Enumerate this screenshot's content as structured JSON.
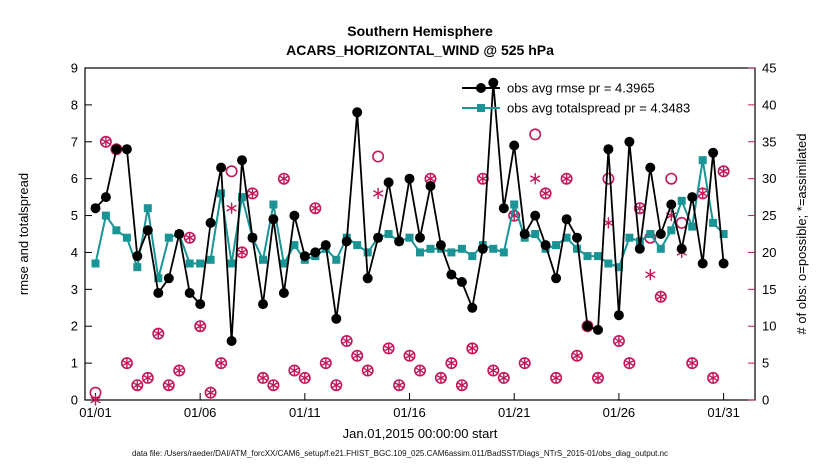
{
  "title": {
    "line1": "Southern Hemisphere",
    "line2": "ACARS_HORIZONTAL_WIND @ 525 hPa"
  },
  "footer": {
    "datafile": "data file: /Users/raeder/DAI/ATM_forcXX/CAM6_setup/f.e21.FHIST_BGC.109_025.CAM6assim.011/BadSST/Diags_NTrS_2015-01/obs_diag_output.nc"
  },
  "colors": {
    "rmse": "#000000",
    "totalspread": "#1a9494",
    "obs": "#c2185b",
    "axis": "#000000"
  },
  "chart_data": {
    "type": "line",
    "title": "Southern Hemisphere - ACARS_HORIZONTAL_WIND @ 525 hPa",
    "xlabel": "Jan.01,2015 00:00:00 start",
    "ylabel_left": "rmse and totalspread",
    "ylabel_right": "# of obs: o=possible; *=assimilated",
    "xlim": [
      0.5,
      32.5
    ],
    "ylim_left": [
      0,
      9
    ],
    "ylim_right": [
      0,
      45
    ],
    "yticks_left": [
      0,
      1,
      2,
      3,
      4,
      5,
      6,
      7,
      8,
      9
    ],
    "yticks_right": [
      0,
      5,
      10,
      15,
      20,
      25,
      30,
      35,
      40,
      45
    ],
    "xticks": [
      {
        "day": 1,
        "label": "01/01"
      },
      {
        "day": 6,
        "label": "01/06"
      },
      {
        "day": 11,
        "label": "01/11"
      },
      {
        "day": 16,
        "label": "01/16"
      },
      {
        "day": 21,
        "label": "01/21"
      },
      {
        "day": 26,
        "label": "01/26"
      },
      {
        "day": 31,
        "label": "01/31"
      }
    ],
    "x_start": 1,
    "x_step": 0.5,
    "legend": [
      {
        "label": "obs avg rmse pr = 4.3965",
        "series": "rmse"
      },
      {
        "label": "obs avg totalspread pr = 4.3483",
        "series": "totalspread"
      }
    ],
    "series": [
      {
        "name": "rmse",
        "axis": "left",
        "marker": "filled-circle",
        "values": [
          5.2,
          5.5,
          6.8,
          6.8,
          3.9,
          4.6,
          2.9,
          3.3,
          4.5,
          2.9,
          2.6,
          4.8,
          6.3,
          1.6,
          6.5,
          4.4,
          2.6,
          4.9,
          2.9,
          5.0,
          3.9,
          4.0,
          4.2,
          2.2,
          4.3,
          7.8,
          3.3,
          4.4,
          5.9,
          4.3,
          6.0,
          4.4,
          5.8,
          4.2,
          3.4,
          3.2,
          2.5,
          4.1,
          8.6,
          5.2,
          6.9,
          4.5,
          5.0,
          4.2,
          3.3,
          4.9,
          4.4,
          2.0,
          1.9,
          6.8,
          2.3,
          7.0,
          4.1,
          6.3,
          4.5,
          5.3,
          4.1,
          5.5,
          3.7,
          6.7,
          3.7
        ]
      },
      {
        "name": "totalspread",
        "axis": "left",
        "marker": "filled-square",
        "values": [
          3.7,
          5.0,
          4.6,
          4.4,
          3.6,
          5.2,
          3.3,
          4.4,
          4.5,
          3.7,
          3.7,
          3.8,
          5.6,
          3.7,
          5.5,
          4.4,
          3.8,
          5.3,
          3.7,
          4.2,
          3.8,
          3.9,
          4.1,
          3.8,
          4.4,
          4.2,
          4.0,
          4.4,
          4.5,
          4.3,
          4.4,
          4.0,
          4.1,
          4.1,
          4.0,
          4.1,
          3.9,
          4.2,
          4.1,
          4.0,
          5.3,
          4.4,
          4.5,
          4.1,
          4.2,
          4.4,
          4.1,
          3.9,
          3.9,
          3.7,
          3.6,
          4.4,
          4.3,
          4.5,
          4.1,
          4.6,
          5.4,
          4.7,
          6.5,
          4.8,
          4.5
        ]
      },
      {
        "name": "possible",
        "axis": "right",
        "marker": "open-circle",
        "values": [
          1,
          35,
          34,
          5,
          2,
          3,
          9,
          2,
          4,
          22,
          10,
          1,
          5,
          31,
          20,
          28,
          3,
          2,
          30,
          4,
          3,
          26,
          5,
          2,
          8,
          6,
          4,
          33,
          7,
          2,
          6,
          4,
          30,
          3,
          5,
          2,
          7,
          30,
          4,
          3,
          25,
          5,
          36,
          28,
          3,
          30,
          6,
          10,
          3,
          30,
          8,
          5,
          26,
          22,
          14,
          30,
          24,
          5,
          28,
          3,
          31
        ]
      },
      {
        "name": "assimilated",
        "axis": "right",
        "marker": "asterisk",
        "values": [
          0,
          35,
          34,
          5,
          2,
          3,
          9,
          2,
          4,
          22,
          10,
          1,
          5,
          26,
          20,
          28,
          3,
          2,
          30,
          4,
          3,
          26,
          5,
          2,
          8,
          6,
          4,
          28,
          7,
          2,
          6,
          4,
          30,
          3,
          5,
          2,
          7,
          30,
          4,
          3,
          25,
          5,
          30,
          28,
          3,
          30,
          6,
          10,
          3,
          24,
          8,
          5,
          26,
          17,
          14,
          25,
          20,
          5,
          28,
          3,
          31
        ]
      }
    ]
  }
}
